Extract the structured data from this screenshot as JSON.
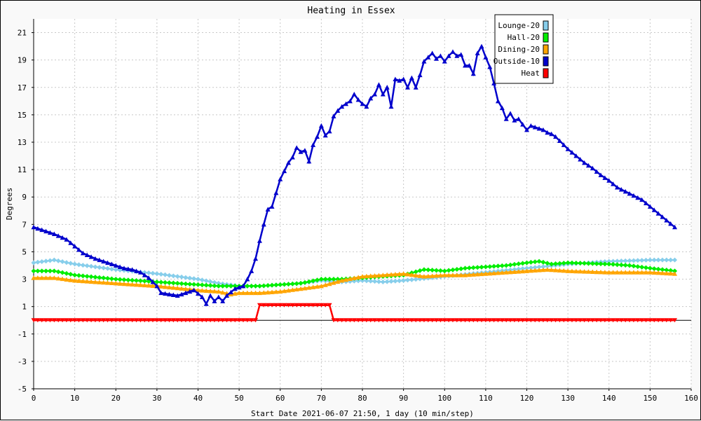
{
  "chart_data": {
    "type": "line",
    "title": "Heating in Essex",
    "xlabel": "Start Date 2021-06-07 21:50, 1 day (10 min/step)",
    "ylabel": "Degrees",
    "xlim": [
      0,
      160
    ],
    "ylim": [
      -5,
      22
    ],
    "x_ticks": [
      0,
      10,
      20,
      30,
      40,
      50,
      60,
      70,
      80,
      90,
      100,
      110,
      120,
      130,
      140,
      150,
      160
    ],
    "y_ticks": [
      -5,
      -3,
      -1,
      1,
      3,
      5,
      7,
      9,
      11,
      13,
      15,
      17,
      19,
      21
    ],
    "grid": true,
    "legend_position": "top-right",
    "series": [
      {
        "name": "Lounge-20",
        "color": "#87ceeb",
        "marker": "diamond",
        "points": [
          [
            0,
            4.2
          ],
          [
            5,
            4.4
          ],
          [
            10,
            4.1
          ],
          [
            20,
            3.7
          ],
          [
            30,
            3.4
          ],
          [
            40,
            3.0
          ],
          [
            45,
            2.7
          ],
          [
            50,
            2.5
          ],
          [
            55,
            2.5
          ],
          [
            60,
            2.6
          ],
          [
            65,
            2.7
          ],
          [
            70,
            2.9
          ],
          [
            75,
            2.8
          ],
          [
            80,
            2.9
          ],
          [
            85,
            2.8
          ],
          [
            90,
            2.9
          ],
          [
            100,
            3.2
          ],
          [
            110,
            3.5
          ],
          [
            120,
            3.8
          ],
          [
            130,
            4.1
          ],
          [
            140,
            4.3
          ],
          [
            150,
            4.4
          ],
          [
            156,
            4.4
          ]
        ]
      },
      {
        "name": "Hall-20",
        "color": "#00ee00",
        "marker": "diamond",
        "points": [
          [
            0,
            3.6
          ],
          [
            5,
            3.6
          ],
          [
            10,
            3.3
          ],
          [
            20,
            3.0
          ],
          [
            30,
            2.8
          ],
          [
            40,
            2.6
          ],
          [
            45,
            2.5
          ],
          [
            50,
            2.5
          ],
          [
            55,
            2.5
          ],
          [
            60,
            2.6
          ],
          [
            65,
            2.7
          ],
          [
            70,
            3.0
          ],
          [
            75,
            3.0
          ],
          [
            80,
            3.1
          ],
          [
            85,
            3.2
          ],
          [
            90,
            3.3
          ],
          [
            95,
            3.7
          ],
          [
            100,
            3.6
          ],
          [
            105,
            3.8
          ],
          [
            110,
            3.9
          ],
          [
            115,
            4.0
          ],
          [
            120,
            4.2
          ],
          [
            123,
            4.3
          ],
          [
            126,
            4.1
          ],
          [
            130,
            4.2
          ],
          [
            140,
            4.1
          ],
          [
            145,
            4.0
          ],
          [
            150,
            3.8
          ],
          [
            156,
            3.6
          ]
        ]
      },
      {
        "name": "Dining-20",
        "color": "#ffa500",
        "marker": "triangle",
        "points": [
          [
            0,
            3.1
          ],
          [
            5,
            3.1
          ],
          [
            10,
            2.9
          ],
          [
            20,
            2.7
          ],
          [
            30,
            2.5
          ],
          [
            40,
            2.2
          ],
          [
            45,
            2.1
          ],
          [
            48,
            1.9
          ],
          [
            50,
            2.0
          ],
          [
            55,
            2.0
          ],
          [
            60,
            2.1
          ],
          [
            70,
            2.5
          ],
          [
            75,
            2.9
          ],
          [
            80,
            3.2
          ],
          [
            85,
            3.3
          ],
          [
            90,
            3.4
          ],
          [
            95,
            3.2
          ],
          [
            100,
            3.3
          ],
          [
            105,
            3.3
          ],
          [
            110,
            3.4
          ],
          [
            120,
            3.6
          ],
          [
            125,
            3.7
          ],
          [
            130,
            3.6
          ],
          [
            140,
            3.5
          ],
          [
            150,
            3.5
          ],
          [
            156,
            3.4
          ]
        ]
      },
      {
        "name": "Outside-10",
        "color": "#0000cc",
        "marker": "triangle",
        "points": [
          [
            0,
            6.8
          ],
          [
            2,
            6.6
          ],
          [
            5,
            6.3
          ],
          [
            8,
            5.9
          ],
          [
            10,
            5.4
          ],
          [
            12,
            4.9
          ],
          [
            15,
            4.5
          ],
          [
            18,
            4.2
          ],
          [
            20,
            4.0
          ],
          [
            22,
            3.8
          ],
          [
            24,
            3.7
          ],
          [
            26,
            3.5
          ],
          [
            28,
            3.1
          ],
          [
            30,
            2.5
          ],
          [
            31,
            2.0
          ],
          [
            33,
            1.9
          ],
          [
            35,
            1.8
          ],
          [
            37,
            2.0
          ],
          [
            39,
            2.2
          ],
          [
            41,
            1.7
          ],
          [
            42,
            1.2
          ],
          [
            43,
            1.8
          ],
          [
            44,
            1.4
          ],
          [
            45,
            1.7
          ],
          [
            46,
            1.4
          ],
          [
            47,
            1.8
          ],
          [
            49,
            2.3
          ],
          [
            51,
            2.5
          ],
          [
            52,
            3.0
          ],
          [
            53,
            3.6
          ],
          [
            54,
            4.5
          ],
          [
            55,
            5.8
          ],
          [
            56,
            7.0
          ],
          [
            57,
            8.1
          ],
          [
            58,
            8.3
          ],
          [
            59,
            9.3
          ],
          [
            60,
            10.3
          ],
          [
            61,
            10.9
          ],
          [
            62,
            11.5
          ],
          [
            63,
            11.9
          ],
          [
            64,
            12.6
          ],
          [
            65,
            12.3
          ],
          [
            66,
            12.4
          ],
          [
            67,
            11.6
          ],
          [
            68,
            12.8
          ],
          [
            69,
            13.4
          ],
          [
            70,
            14.2
          ],
          [
            71,
            13.5
          ],
          [
            72,
            13.8
          ],
          [
            73,
            14.9
          ],
          [
            74,
            15.3
          ],
          [
            75,
            15.6
          ],
          [
            76,
            15.8
          ],
          [
            77,
            16.0
          ],
          [
            78,
            16.5
          ],
          [
            79,
            16.1
          ],
          [
            80,
            15.8
          ],
          [
            81,
            15.6
          ],
          [
            82,
            16.2
          ],
          [
            83,
            16.5
          ],
          [
            84,
            17.2
          ],
          [
            85,
            16.5
          ],
          [
            86,
            17.0
          ],
          [
            87,
            15.6
          ],
          [
            88,
            17.6
          ],
          [
            89,
            17.5
          ],
          [
            90,
            17.6
          ],
          [
            91,
            17.0
          ],
          [
            92,
            17.7
          ],
          [
            93,
            17.0
          ],
          [
            94,
            17.9
          ],
          [
            95,
            18.9
          ],
          [
            96,
            19.2
          ],
          [
            97,
            19.5
          ],
          [
            98,
            19.1
          ],
          [
            99,
            19.3
          ],
          [
            100,
            18.9
          ],
          [
            101,
            19.3
          ],
          [
            102,
            19.6
          ],
          [
            103,
            19.3
          ],
          [
            104,
            19.4
          ],
          [
            105,
            18.6
          ],
          [
            106,
            18.6
          ],
          [
            107,
            18.0
          ],
          [
            108,
            19.5
          ],
          [
            109,
            20.0
          ],
          [
            110,
            19.2
          ],
          [
            111,
            18.5
          ],
          [
            112,
            17.3
          ],
          [
            113,
            16.0
          ],
          [
            114,
            15.5
          ],
          [
            115,
            14.7
          ],
          [
            116,
            15.1
          ],
          [
            117,
            14.6
          ],
          [
            118,
            14.7
          ],
          [
            119,
            14.3
          ],
          [
            120,
            13.9
          ],
          [
            121,
            14.2
          ],
          [
            122,
            14.1
          ],
          [
            123,
            14.0
          ],
          [
            124,
            13.9
          ],
          [
            125,
            13.7
          ],
          [
            126,
            13.6
          ],
          [
            127,
            13.4
          ],
          [
            128,
            13.1
          ],
          [
            129,
            12.8
          ],
          [
            130,
            12.5
          ],
          [
            132,
            12.0
          ],
          [
            134,
            11.5
          ],
          [
            136,
            11.1
          ],
          [
            138,
            10.6
          ],
          [
            140,
            10.2
          ],
          [
            142,
            9.7
          ],
          [
            144,
            9.4
          ],
          [
            146,
            9.1
          ],
          [
            148,
            8.8
          ],
          [
            150,
            8.3
          ],
          [
            152,
            7.8
          ],
          [
            154,
            7.3
          ],
          [
            156,
            6.8
          ]
        ]
      },
      {
        "name": "Heat",
        "color": "#ff0000",
        "marker": "triangle-down",
        "points": [
          [
            0,
            0
          ],
          [
            54,
            0
          ],
          [
            55,
            1.1
          ],
          [
            72,
            1.1
          ],
          [
            73,
            0
          ],
          [
            156,
            0
          ]
        ]
      }
    ]
  }
}
